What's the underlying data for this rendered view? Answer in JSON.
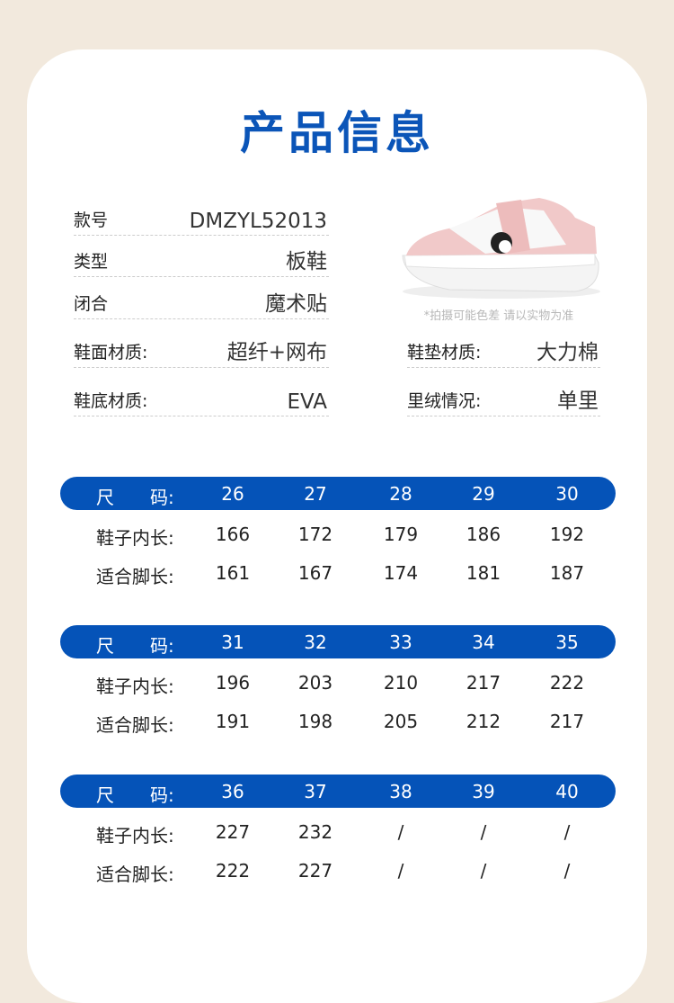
{
  "title": "产品信息",
  "info_left": [
    {
      "label": "款号",
      "value": "DMZYL52013"
    },
    {
      "label": "类型",
      "value": "板鞋"
    },
    {
      "label": "闭合",
      "value": "魔术贴"
    },
    {
      "label": "鞋面材质:",
      "value": "超纤+网布"
    },
    {
      "label": "鞋底材质:",
      "value": "EVA"
    }
  ],
  "info_right": [
    {
      "label": "鞋垫材质:",
      "value": "大力棉"
    },
    {
      "label": "里绒情况:",
      "value": "单里"
    }
  ],
  "image_caption": "*拍摄可能色差 请以实物为准",
  "colors": {
    "accent": "#0553b8",
    "background": "#f2e9dd"
  },
  "size_header_label": "尺　　码:",
  "row_labels": [
    "鞋子内长:",
    "适合脚长:"
  ],
  "tables": [
    {
      "sizes": [
        "26",
        "27",
        "28",
        "29",
        "30"
      ],
      "inner_length": [
        "166",
        "172",
        "179",
        "186",
        "192"
      ],
      "foot_length": [
        "161",
        "167",
        "174",
        "181",
        "187"
      ]
    },
    {
      "sizes": [
        "31",
        "32",
        "33",
        "34",
        "35"
      ],
      "inner_length": [
        "196",
        "203",
        "210",
        "217",
        "222"
      ],
      "foot_length": [
        "191",
        "198",
        "205",
        "212",
        "217"
      ]
    },
    {
      "sizes": [
        "36",
        "37",
        "38",
        "39",
        "40"
      ],
      "inner_length": [
        "227",
        "232",
        "/",
        "/",
        "/"
      ],
      "foot_length": [
        "222",
        "227",
        "/",
        "/",
        "/"
      ]
    }
  ]
}
